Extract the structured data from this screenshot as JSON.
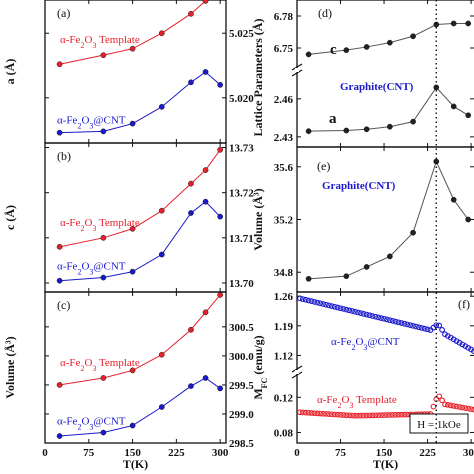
{
  "colors": {
    "red": "#e8202a",
    "blue": "#1a1acc",
    "black": "#111111",
    "gray": "#555555"
  },
  "chart_data": [
    {
      "id": "a",
      "type": "line",
      "panel_label": "(a)",
      "ylabel": "a (Å)",
      "ylim": [
        5.0165,
        5.0285
      ],
      "xlim": [
        0,
        310
      ],
      "yticks": [
        5.02,
        5.025
      ],
      "ytick_labels": [
        "5.020",
        "5.025"
      ],
      "xticks": [
        0,
        75,
        150,
        225,
        300
      ],
      "series": [
        {
          "name": "α-Fe₂O₃ Template",
          "color": "red",
          "x": [
            25,
            100,
            150,
            200,
            250,
            275,
            300
          ],
          "y": [
            5.0226,
            5.0233,
            5.0238,
            5.025,
            5.0265,
            5.0275,
            5.0282
          ]
        },
        {
          "name": "α-Fe₂O₃@CNT",
          "color": "blue",
          "x": [
            25,
            100,
            150,
            200,
            250,
            275,
            300
          ],
          "y": [
            5.0173,
            5.0174,
            5.018,
            5.0193,
            5.0212,
            5.022,
            5.021
          ]
        }
      ],
      "labels": [
        "α-Fe₂O₃ Template",
        "α-Fe₂O₃@CNT"
      ]
    },
    {
      "id": "b",
      "type": "line",
      "panel_label": "(b)",
      "ylabel": "c (Å)",
      "ylim": [
        13.698,
        13.731
      ],
      "xlim": [
        0,
        310
      ],
      "yticks": [
        13.7,
        13.71,
        13.72,
        13.73
      ],
      "ytick_labels": [
        "13.70",
        "13.71",
        "13.72",
        "13.73"
      ],
      "xticks": [
        0,
        75,
        150,
        225,
        300
      ],
      "series": [
        {
          "name": "α-Fe₂O₃ Template",
          "color": "red",
          "x": [
            25,
            100,
            150,
            200,
            250,
            275,
            300
          ],
          "y": [
            13.708,
            13.71,
            13.712,
            13.716,
            13.722,
            13.725,
            13.7295
          ]
        },
        {
          "name": "α-Fe₂O₃@CNT",
          "color": "blue",
          "x": [
            25,
            100,
            150,
            200,
            250,
            275,
            300
          ],
          "y": [
            13.7005,
            13.7012,
            13.7025,
            13.7063,
            13.7155,
            13.718,
            13.7147
          ]
        }
      ],
      "labels": [
        "α-Fe₂O₃ Template",
        "α-Fe₂O₃@CNT"
      ]
    },
    {
      "id": "c",
      "type": "line",
      "panel_label": "(c)",
      "ylabel": "Volume (Å³)",
      "ylim": [
        298.5,
        301.1
      ],
      "xlim": [
        0,
        310
      ],
      "yticks": [
        298.5,
        299.0,
        299.5,
        300.0,
        300.5
      ],
      "ytick_labels": [
        "298.5",
        "299.0",
        "299.5",
        "300.0",
        "300.5"
      ],
      "xticks": [
        0,
        75,
        150,
        225,
        300
      ],
      "xtick_labels": [
        "0",
        "75",
        "150",
        "225",
        "300"
      ],
      "xlabel": "T(K)",
      "series": [
        {
          "name": "α-Fe₂O₃ Template",
          "color": "red",
          "x": [
            25,
            100,
            150,
            200,
            250,
            275,
            300
          ],
          "y": [
            299.5,
            299.62,
            299.75,
            300.02,
            300.45,
            300.75,
            301.05
          ]
        },
        {
          "name": "α-Fe₂O₃@CNT",
          "color": "blue",
          "x": [
            25,
            100,
            150,
            200,
            250,
            275,
            300
          ],
          "y": [
            298.62,
            298.68,
            298.8,
            299.12,
            299.48,
            299.62,
            299.44
          ]
        }
      ],
      "labels": [
        "α-Fe₂O₃ Template",
        "α-Fe₂O₃@CNT"
      ]
    },
    {
      "id": "d",
      "type": "line",
      "panel_label": "(d)",
      "ylabel": "Lattice Parameters (Å)",
      "xlim": [
        0,
        305
      ],
      "xticks": [
        0,
        75,
        150,
        225,
        300
      ],
      "upper": {
        "ylim": [
          6.735,
          6.795
        ],
        "yticks": [
          6.75,
          6.78
        ],
        "ytick_labels": [
          "6.75",
          "6.78"
        ]
      },
      "lower": {
        "ylim": [
          2.422,
          2.478
        ],
        "yticks": [
          2.43,
          2.46
        ],
        "ytick_labels": [
          "2.43",
          "2.46"
        ]
      },
      "series": [
        {
          "name": "c",
          "color": "black",
          "axis": "upper",
          "x": [
            20,
            85,
            120,
            160,
            200,
            240,
            270,
            295
          ],
          "y": [
            6.744,
            6.748,
            6.751,
            6.755,
            6.761,
            6.772,
            6.773,
            6.773
          ]
        },
        {
          "name": "a",
          "color": "black",
          "axis": "lower",
          "x": [
            20,
            85,
            120,
            160,
            200,
            240,
            270,
            295
          ],
          "y": [
            2.4345,
            2.435,
            2.436,
            2.438,
            2.442,
            2.469,
            2.454,
            2.447
          ]
        }
      ],
      "labels": [
        "c",
        "a",
        "Graphite(CNT)"
      ]
    },
    {
      "id": "e",
      "type": "line",
      "panel_label": "(e)",
      "ylabel": "Volume (Å³)",
      "ylim": [
        34.65,
        35.75
      ],
      "xlim": [
        0,
        305
      ],
      "yticks": [
        34.8,
        35.2,
        35.6
      ],
      "ytick_labels": [
        "34.8",
        "35.2",
        "35.6"
      ],
      "xticks": [
        0,
        75,
        150,
        225,
        300
      ],
      "series": [
        {
          "name": "Graphite(CNT)",
          "color": "black",
          "x": [
            20,
            85,
            120,
            160,
            200,
            240,
            270,
            295
          ],
          "y": [
            34.75,
            34.77,
            34.84,
            34.92,
            35.1,
            35.64,
            35.35,
            35.2
          ]
        }
      ],
      "labels": [
        "Graphite(CNT)"
      ]
    },
    {
      "id": "f",
      "type": "scatter",
      "panel_label": "(f)",
      "ylabel": "M_FC (emu/g)",
      "xlabel": "T(K)",
      "xlim": [
        0,
        305
      ],
      "xticks": [
        0,
        75,
        150,
        225,
        300
      ],
      "xtick_labels": [
        "0",
        "75",
        "150",
        "225",
        "300"
      ],
      "upper": {
        "ylim": [
          1.095,
          1.27
        ],
        "yticks": [
          1.12,
          1.19,
          1.26
        ],
        "ytick_labels": [
          "1.12",
          "1.19",
          "1.26"
        ]
      },
      "lower": {
        "ylim": [
          0.068,
          0.142
        ],
        "yticks": [
          0.08,
          0.12
        ],
        "ytick_labels": [
          "0.08",
          "0.12"
        ]
      },
      "series": [
        {
          "name": "α-Fe₂O₃@CNT",
          "color": "blue",
          "axis": "upper",
          "x_start": 5,
          "x_end": 305,
          "x_step": 5,
          "curve": [
            [
              5,
              1.255
            ],
            [
              230,
              1.18
            ],
            [
              243,
              1.195
            ],
            [
              255,
              1.17
            ],
            [
              305,
              1.13
            ]
          ]
        },
        {
          "name": "α-Fe₂O₃ Template",
          "color": "red",
          "axis": "lower",
          "x_start": 5,
          "x_end": 305,
          "x_step": 5,
          "curve": [
            [
              5,
              0.103
            ],
            [
              100,
              0.099
            ],
            [
              230,
              0.101
            ],
            [
              243,
              0.123
            ],
            [
              255,
              0.112
            ],
            [
              305,
              0.106
            ]
          ]
        }
      ],
      "labels": [
        "α-Fe₂O₃@CNT",
        "α-Fe₂O₃ Template"
      ],
      "annotation": "H = 1kOe"
    }
  ],
  "vline_T": 240
}
